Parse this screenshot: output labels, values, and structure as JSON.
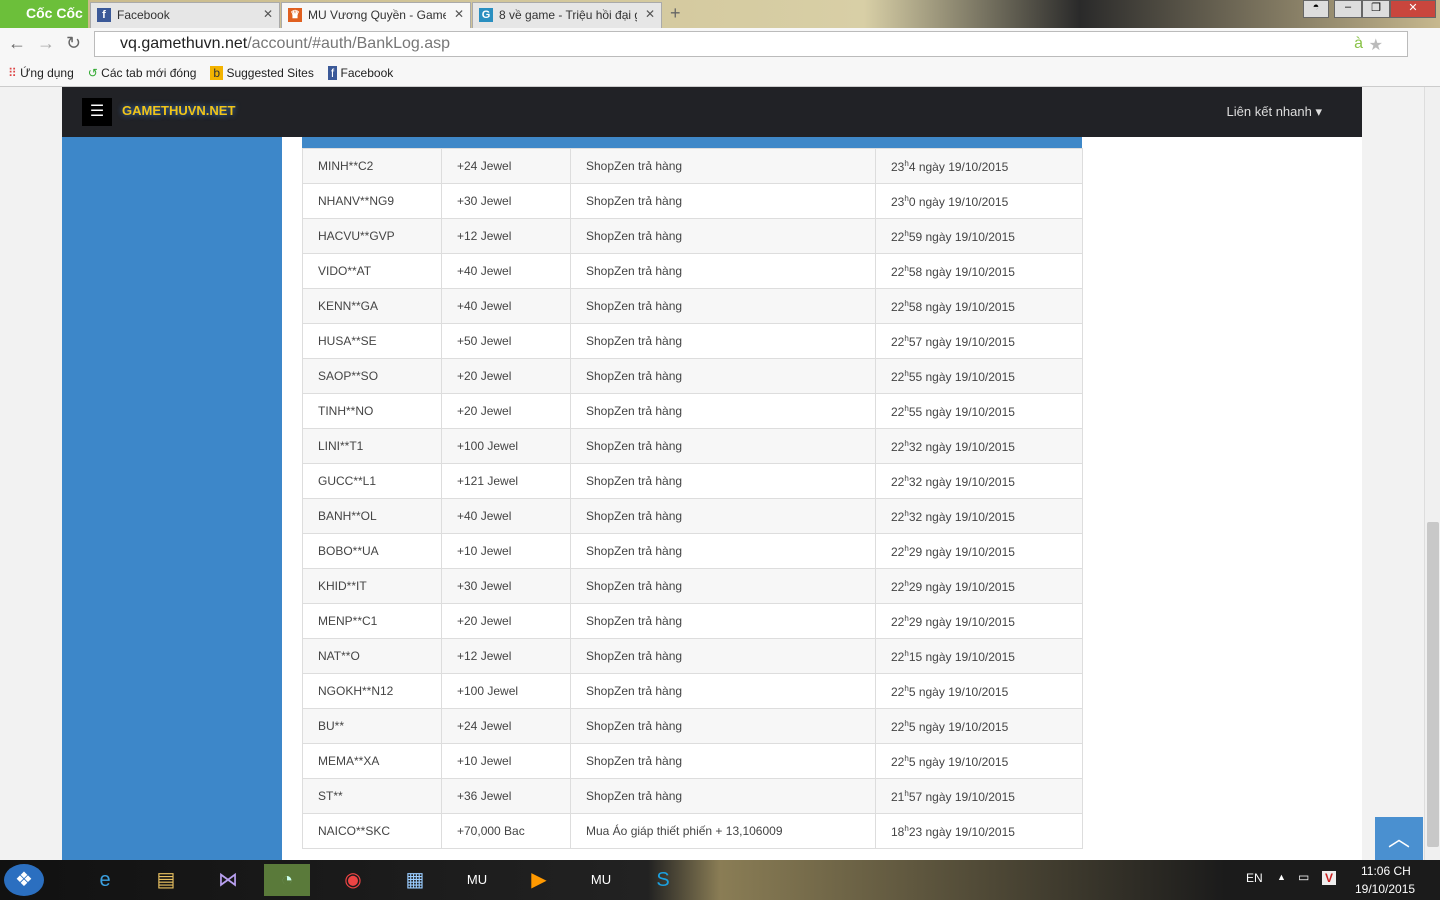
{
  "browser": {
    "brand": "Cốc Cốc",
    "tabs": [
      {
        "label": "Facebook",
        "icon": "facebook-icon",
        "color": "#3b5998"
      },
      {
        "label": "MU Vương Quyền - Game",
        "icon": "crown-icon",
        "color": "#e06020"
      },
      {
        "label": "8 về game - Triệu hồi đại g",
        "icon": "g-icon",
        "color": "#2a8fc0"
      }
    ],
    "url_host": "vq.gamethuvn.net",
    "url_path": "/account/#auth/BankLog.asp",
    "bookmarks": [
      "Ứng dụng",
      "Các tab mới đóng",
      "Suggested Sites",
      "Facebook"
    ]
  },
  "site": {
    "brand": "GAMETHUVN.NET",
    "quick_links": "Liên kết nhanh",
    "accent": "#3d87c9"
  },
  "labels": {
    "h": "h",
    "ngay": " ngày "
  },
  "rows": [
    {
      "user": "MINH**C2",
      "amount": "+24  Jewel",
      "desc": "ShopZen trả hàng",
      "hour": "23",
      "min": "4",
      "date": "19/10/2015"
    },
    {
      "user": "NHANV**NG9",
      "amount": "+30  Jewel",
      "desc": "ShopZen trả hàng",
      "hour": "23",
      "min": "0",
      "date": "19/10/2015"
    },
    {
      "user": "HACVU**GVP",
      "amount": "+12  Jewel",
      "desc": "ShopZen trả hàng",
      "hour": "22",
      "min": "59",
      "date": "19/10/2015"
    },
    {
      "user": "VIDO**AT",
      "amount": "+40  Jewel",
      "desc": "ShopZen trả hàng",
      "hour": "22",
      "min": "58",
      "date": "19/10/2015"
    },
    {
      "user": "KENN**GA",
      "amount": "+40  Jewel",
      "desc": "ShopZen trả hàng",
      "hour": "22",
      "min": "58",
      "date": "19/10/2015"
    },
    {
      "user": "HUSA**SE",
      "amount": "+50  Jewel",
      "desc": "ShopZen trả hàng",
      "hour": "22",
      "min": "57",
      "date": "19/10/2015"
    },
    {
      "user": "SAOP**SO",
      "amount": "+20  Jewel",
      "desc": "ShopZen trả hàng",
      "hour": "22",
      "min": "55",
      "date": "19/10/2015"
    },
    {
      "user": "TINH**NO",
      "amount": "+20  Jewel",
      "desc": "ShopZen trả hàng",
      "hour": "22",
      "min": "55",
      "date": "19/10/2015"
    },
    {
      "user": "LINI**T1",
      "amount": "+100  Jewel",
      "desc": "ShopZen trả hàng",
      "hour": "22",
      "min": "32",
      "date": "19/10/2015"
    },
    {
      "user": "GUCC**L1",
      "amount": "+121  Jewel",
      "desc": "ShopZen trả hàng",
      "hour": "22",
      "min": "32",
      "date": "19/10/2015"
    },
    {
      "user": "BANH**OL",
      "amount": "+40  Jewel",
      "desc": "ShopZen trả hàng",
      "hour": "22",
      "min": "32",
      "date": "19/10/2015"
    },
    {
      "user": "BOBO**UA",
      "amount": "+10  Jewel",
      "desc": "ShopZen trả hàng",
      "hour": "22",
      "min": "29",
      "date": "19/10/2015"
    },
    {
      "user": "KHID**IT",
      "amount": "+30  Jewel",
      "desc": "ShopZen trả hàng",
      "hour": "22",
      "min": "29",
      "date": "19/10/2015"
    },
    {
      "user": "MENP**C1",
      "amount": "+20  Jewel",
      "desc": "ShopZen trả hàng",
      "hour": "22",
      "min": "29",
      "date": "19/10/2015"
    },
    {
      "user": "NAT**O",
      "amount": "+12  Jewel",
      "desc": "ShopZen trả hàng",
      "hour": "22",
      "min": "15",
      "date": "19/10/2015"
    },
    {
      "user": "NGOKH**N12",
      "amount": "+100  Jewel",
      "desc": "ShopZen trả hàng",
      "hour": "22",
      "min": "5",
      "date": "19/10/2015"
    },
    {
      "user": "BU**",
      "amount": "+24  Jewel",
      "desc": "ShopZen trả hàng",
      "hour": "22",
      "min": "5",
      "date": "19/10/2015"
    },
    {
      "user": "MEMA**XA",
      "amount": "+10  Jewel",
      "desc": "ShopZen trả hàng",
      "hour": "22",
      "min": "5",
      "date": "19/10/2015"
    },
    {
      "user": "ST**",
      "amount": "+36  Jewel",
      "desc": "ShopZen trả hàng",
      "hour": "21",
      "min": "57",
      "date": "19/10/2015"
    },
    {
      "user": "NAICO**SKC",
      "amount": "+70,000  Bac",
      "desc": "Mua Áo giáp thiết phiến + 13,106009",
      "hour": "18",
      "min": "23",
      "date": "19/10/2015"
    }
  ],
  "taskbar": {
    "lang": "EN",
    "time": "11:06 CH",
    "date": "19/10/2015"
  }
}
